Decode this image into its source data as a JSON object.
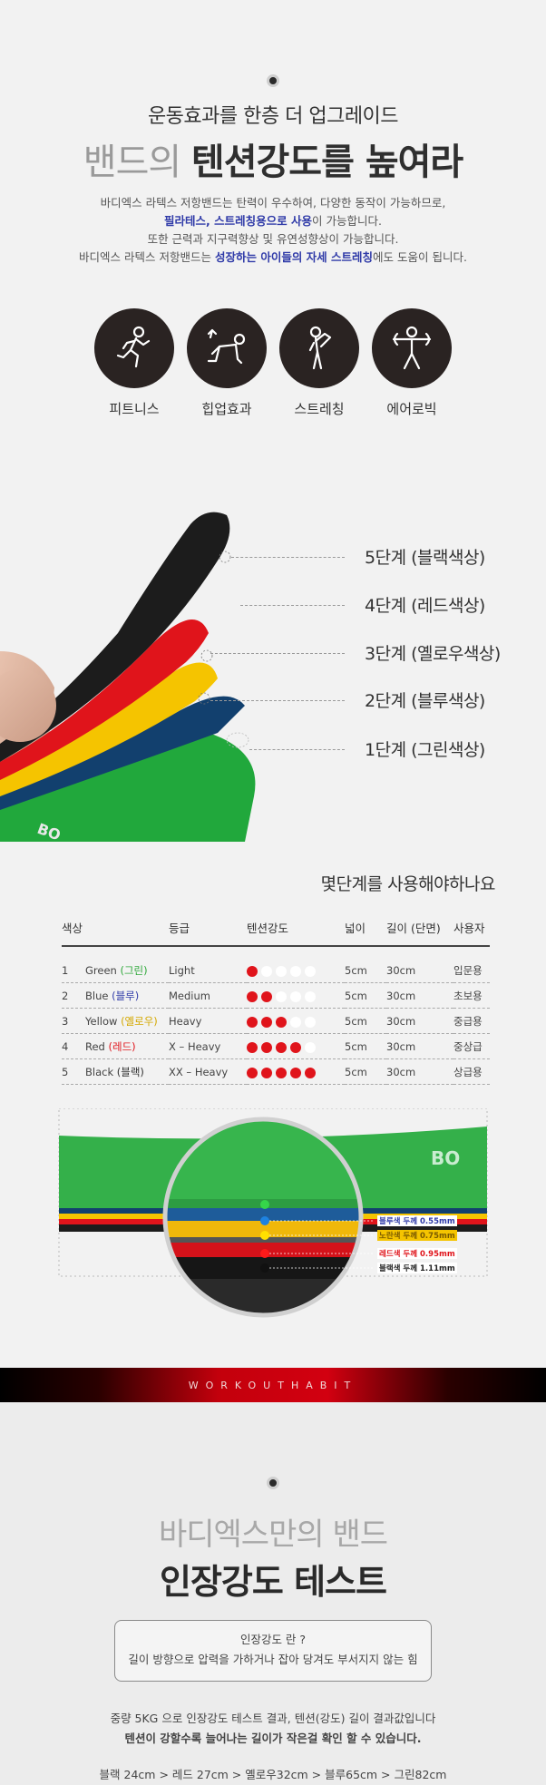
{
  "intro": {
    "subtitle": "운동효과를 한층 더 업그레이드",
    "title_gray": "밴드의 ",
    "title_bold": "텐션강도를 높여라",
    "line1": "바디엑스 라텍스 저항밴드는 탄력이 우수하여, 다양한 동작이 가능하므로,",
    "line2_highlight": "필라테스, 스트레칭용으로 사용",
    "line2_rest": "이 가능합니다.",
    "line3": "또한 근력과 지구력향상 및 유연성향상이 가능합니다.",
    "line4_start": "바디엑스 라텍스 저항밴드는 ",
    "line4_highlight": "성장하는 아이들의 자세 스트레칭",
    "line4_end": "에도 도움이 됩니다."
  },
  "uses": [
    {
      "label": "피트니스",
      "icon": "running-person-icon"
    },
    {
      "label": "힙업효과",
      "icon": "kneeling-exercise-icon"
    },
    {
      "label": "스트레칭",
      "icon": "stretching-person-icon"
    },
    {
      "label": "에어로빅",
      "icon": "aerobic-person-icon"
    }
  ],
  "levels": [
    {
      "label": "5단계 (블랙색상)",
      "color": "#1c1c1c"
    },
    {
      "label": "4단계 (레드색상)",
      "color": "#e0141b"
    },
    {
      "label": "3단계 (옐로우색상)",
      "color": "#f5c400"
    },
    {
      "label": "2단계 (블루색상)",
      "color": "#12406e"
    },
    {
      "label": "1단계 (그린색상)",
      "color": "#21a83c"
    }
  ],
  "spec": {
    "title": "몇단계를 사용해야하나요",
    "headers": [
      "색상",
      "등급",
      "텐션강도",
      "넓이",
      "길이 (단면)",
      "사용자"
    ],
    "rows": [
      {
        "no": "1",
        "name": "Green",
        "kor": "(그린)",
        "kor_color": "#2fa83a",
        "grade": "Light",
        "level": 1,
        "width": "5cm",
        "length": "30cm",
        "user": "입문용"
      },
      {
        "no": "2",
        "name": "Blue",
        "kor": "(블루)",
        "kor_color": "#2f3aa8",
        "grade": "Medium",
        "level": 2,
        "width": "5cm",
        "length": "30cm",
        "user": "초보용"
      },
      {
        "no": "3",
        "name": "Yellow",
        "kor": "(옐로우)",
        "kor_color": "#d4a800",
        "grade": "Heavy",
        "level": 3,
        "width": "5cm",
        "length": "30cm",
        "user": "중급용"
      },
      {
        "no": "4",
        "name": "Red",
        "kor": "(레드)",
        "kor_color": "#e0141b",
        "grade": "X – Heavy",
        "level": 4,
        "width": "5cm",
        "length": "30cm",
        "user": "중상급"
      },
      {
        "no": "5",
        "name": "Black",
        "kor": "(블랙)",
        "kor_color": "#333333",
        "grade": "XX – Heavy",
        "level": 5,
        "width": "5cm",
        "length": "30cm",
        "user": "상급용"
      }
    ]
  },
  "thickness": {
    "brand": "BO",
    "labels": [
      {
        "text": "블루색 두께 0.55mm",
        "color": "#2f3aa8"
      },
      {
        "text": "노란색 두께 0.75mm",
        "color": "#d4a800"
      },
      {
        "text": "레드색 두께 0.95mm",
        "color": "#e0141b"
      },
      {
        "text": "블랙색 두께 1.11mm",
        "color": "#222222"
      }
    ]
  },
  "workout_bar": "WORKOUTHABIT",
  "test": {
    "subtitle": "바디엑스만의 밴드",
    "title": "인장강도 테스트",
    "def_q": "인장강도 란 ?",
    "def_a": "길이 방향으로 압력을 가하거나 잡아 당겨도 부서지지 않는 힘",
    "result1": "중량 5KG 으로 인장강도 테스트 결과, 텐션(강도) 길이 결과값입니다",
    "result2": "텐션이 강할수록 늘어나는 길이가 작은걸 확인 할 수 있습니다.",
    "result3": "블랙 24cm > 레드 27cm > 옐로우32cm > 블루65cm > 그린82cm"
  }
}
